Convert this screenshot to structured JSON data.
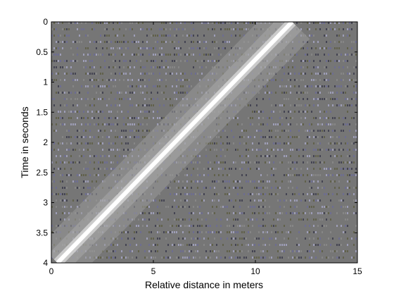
{
  "chart_data": {
    "type": "heatmap",
    "title": "",
    "xlabel": "Relative distance in meters",
    "ylabel": "Time in seconds",
    "xlim": [
      0,
      15
    ],
    "ylim": [
      0,
      4
    ],
    "y_reversed": true,
    "x_ticks": [
      "0",
      "5",
      "10",
      "15"
    ],
    "y_ticks": [
      "0",
      "0.5",
      "1",
      "1.5",
      "2",
      "2.5",
      "3",
      "3.5",
      "4"
    ],
    "grid": false,
    "colormap": "grayscale with faint blue/olive banded noise",
    "background_color": "#767676",
    "ridge": {
      "description": "bright white diagonal track",
      "points": [
        {
          "x": 11.8,
          "y": 0
        },
        {
          "x": 0.3,
          "y": 4
        }
      ],
      "color": "#ffffff"
    },
    "halo": {
      "description": "lighter grey band around the ridge",
      "color": "#9a9a9a"
    },
    "noise_colors": [
      "#6c6c96",
      "#5e5e44",
      "#8a8a8a",
      "#3c3c4c",
      "#a6a6c4"
    ]
  }
}
